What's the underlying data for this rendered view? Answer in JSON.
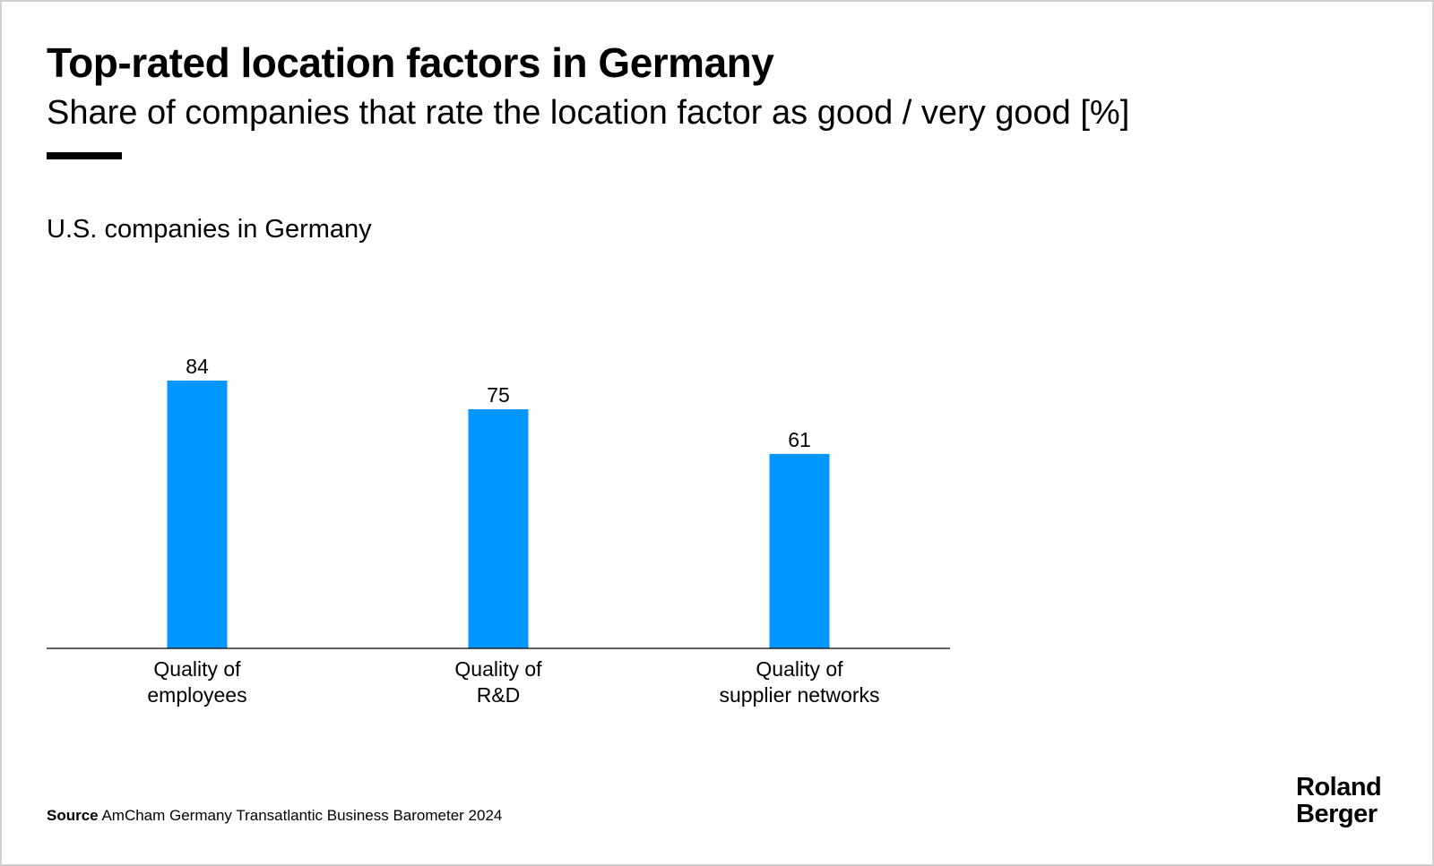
{
  "header": {
    "title": "Top-rated location factors in Germany",
    "subtitle": "Share of companies that rate the location factor as good / very good [%]"
  },
  "section": {
    "title": "U.S. companies in Germany"
  },
  "chart_data": {
    "type": "bar",
    "title": "U.S. companies in Germany",
    "categories": [
      [
        "Quality of",
        "employees"
      ],
      [
        "Quality of",
        "R&D"
      ],
      [
        "Quality of",
        "supplier networks"
      ]
    ],
    "values": [
      84,
      75,
      61
    ],
    "value_labels": [
      "84",
      "75",
      "61"
    ],
    "ylim": [
      0,
      100
    ],
    "grid": false,
    "bar_color": "#0096FF"
  },
  "footer": {
    "source_label": "Source",
    "source_text": "AmCham Germany Transatlantic Business Barometer 2024"
  },
  "logo": {
    "line1": "Roland",
    "line2": "Berger"
  }
}
